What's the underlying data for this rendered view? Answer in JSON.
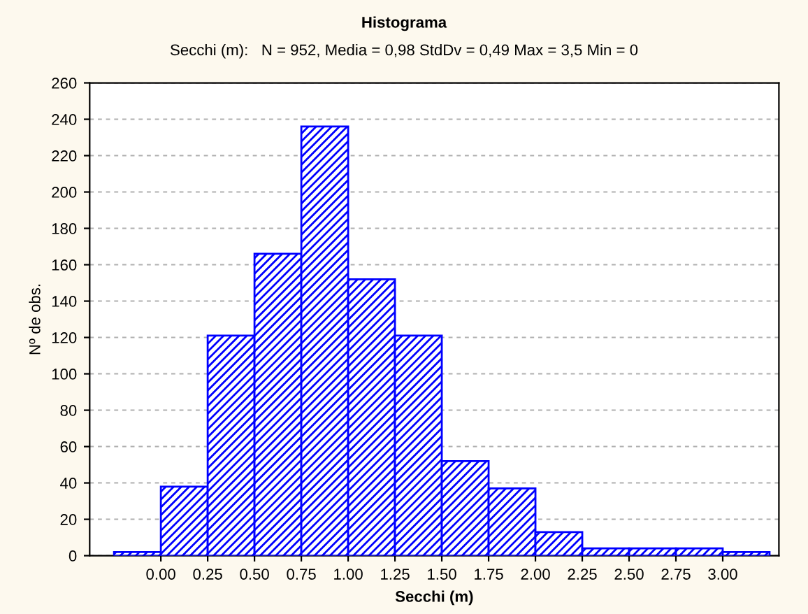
{
  "chart_data": {
    "type": "histogram",
    "title": "Histograma",
    "subtitle": "Secchi (m):   N = 952, Media = 0,98 StdDv = 0,49 Max = 3,5 Min = 0",
    "xlabel": "Secchi (m)",
    "ylabel": "Nº de obs.",
    "bins": [
      -0.25,
      0.0,
      0.25,
      0.5,
      0.75,
      1.0,
      1.25,
      1.5,
      1.75,
      2.0,
      2.25,
      2.5,
      2.75,
      3.0,
      3.25
    ],
    "values": [
      2,
      38,
      121,
      166,
      236,
      152,
      121,
      52,
      37,
      13,
      4,
      4,
      4,
      2
    ],
    "color": "#0000ff",
    "xlim": [
      -0.38,
      3.3
    ],
    "xticks": [
      {
        "value": 0,
        "label": "0.00"
      },
      {
        "value": 0.25,
        "label": "0.25"
      },
      {
        "value": 0.5,
        "label": "0.50"
      },
      {
        "value": 0.75,
        "label": "0.75"
      },
      {
        "value": 1,
        "label": "1.00"
      },
      {
        "value": 1.25,
        "label": "1.25"
      },
      {
        "value": 1.5,
        "label": "1.50"
      },
      {
        "value": 1.75,
        "label": "1.75"
      },
      {
        "value": 2,
        "label": "2.00"
      },
      {
        "value": 2.25,
        "label": "2.25"
      },
      {
        "value": 2.5,
        "label": "2.50"
      },
      {
        "value": 2.75,
        "label": "2.75"
      },
      {
        "value": 3,
        "label": "3.00"
      }
    ],
    "ylim": [
      0,
      260
    ],
    "yticks": [
      0,
      20,
      40,
      60,
      80,
      100,
      120,
      140,
      160,
      180,
      200,
      220,
      240,
      260
    ],
    "grid": "y"
  }
}
